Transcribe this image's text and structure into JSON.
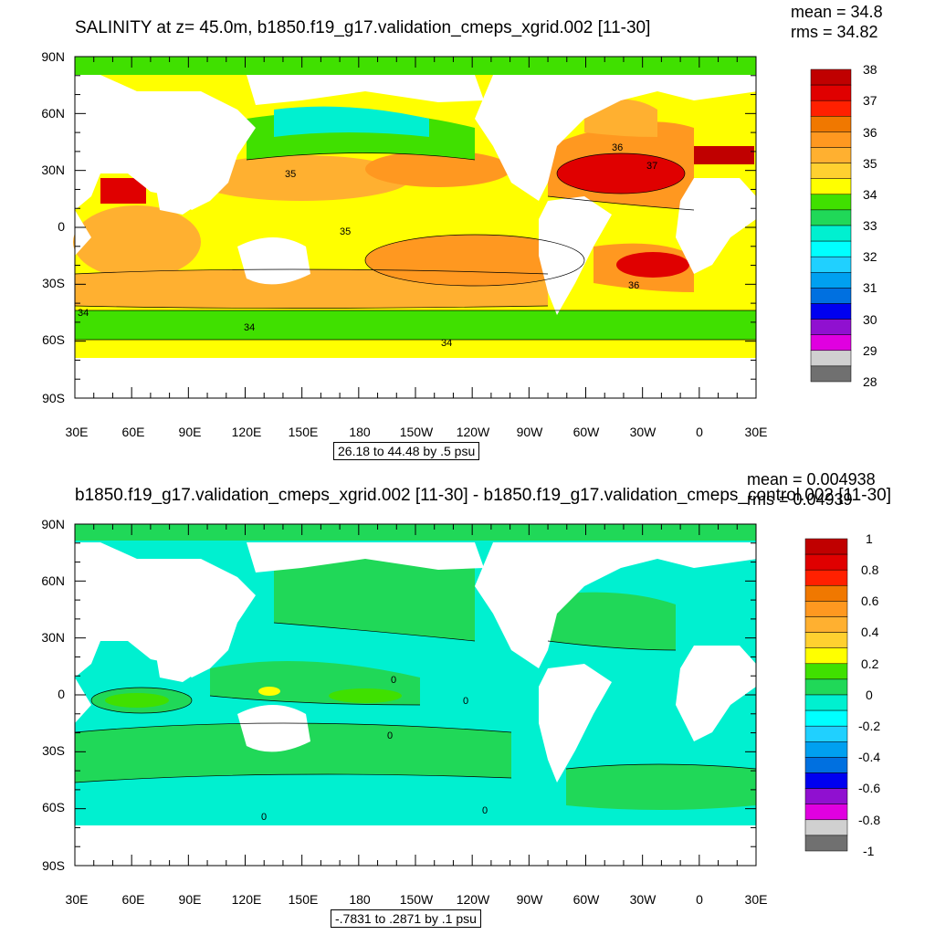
{
  "maps": [
    {
      "title": "SALINITY at z=  45.0m, b1850.f19_g17.validation_cmeps_xgrid.002 [11-30]",
      "mean_text": "mean = 34.8",
      "rms_text": "rms = 34.82",
      "range_text": "26.18 to 44.48 by .5 psu",
      "contour_labels": [
        "36",
        "37",
        "35",
        "35",
        "36",
        "34",
        "34",
        "34"
      ],
      "colorbar": {
        "labels": [
          "38",
          "37",
          "36",
          "35",
          "34",
          "33",
          "32",
          "31",
          "30",
          "29",
          "28"
        ],
        "colors": [
          "#c00000",
          "#e00000",
          "#ff2000",
          "#f07800",
          "#ff9820",
          "#ffb030",
          "#ffd030",
          "#ffff00",
          "#40e000",
          "#20d858",
          "#00f0d0",
          "#00ffff",
          "#20d0ff",
          "#00a0f0",
          "#0070e0",
          "#0000f0",
          "#9010d0",
          "#e000e0",
          "#d0d0d0",
          "#707070"
        ]
      }
    },
    {
      "title": "b1850.f19_g17.validation_cmeps_xgrid.002 [11-30] - b1850.f19_g17.validation_cmeps_control.002 [11-30]",
      "mean_text": "mean = 0.004938",
      "rms_text": "rms = 0.04939",
      "range_text": "-.7831 to .2871 by .1 psu",
      "contour_labels": [
        "0",
        "0",
        "0",
        "0",
        "0"
      ],
      "colorbar": {
        "labels": [
          "1",
          "0.8",
          "0.6",
          "0.4",
          "0.2",
          "0",
          "-0.2",
          "-0.4",
          "-0.6",
          "-0.8",
          "-1"
        ],
        "colors": [
          "#c00000",
          "#e00000",
          "#ff2000",
          "#f07800",
          "#ff9820",
          "#ffb030",
          "#ffd030",
          "#ffff00",
          "#40e000",
          "#20d858",
          "#00f0d0",
          "#00ffff",
          "#20d0ff",
          "#00a0f0",
          "#0070e0",
          "#0000f0",
          "#9010d0",
          "#e000e0",
          "#d0d0d0",
          "#707070"
        ]
      }
    }
  ],
  "axes": {
    "lat_labels": [
      "90N",
      "60N",
      "30N",
      "0",
      "30S",
      "60S",
      "90S"
    ],
    "lon_labels": [
      "30E",
      "60E",
      "90E",
      "120E",
      "150E",
      "180",
      "150W",
      "120W",
      "90W",
      "60W",
      "30W",
      "0",
      "30E"
    ]
  },
  "land_color": "#ffffff"
}
